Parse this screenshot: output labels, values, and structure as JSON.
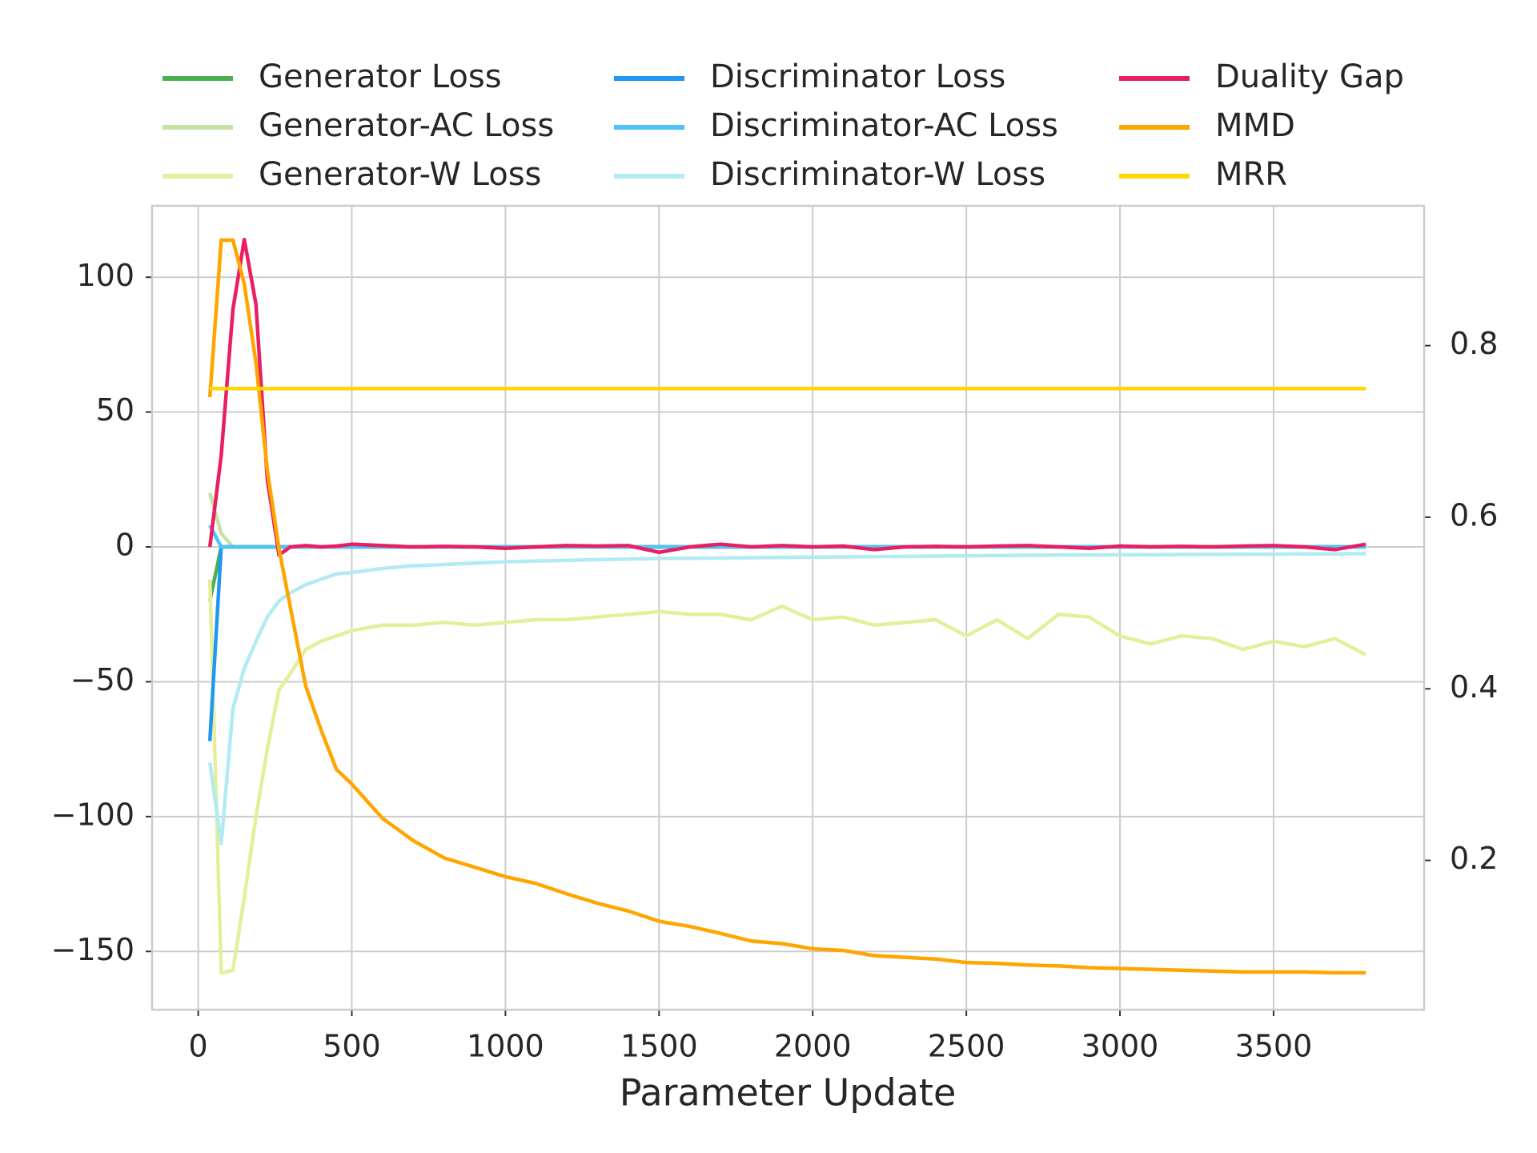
{
  "chart_data": {
    "type": "line",
    "x_label": "Parameter Update",
    "x": [
      38,
      75,
      113,
      150,
      188,
      225,
      263,
      300,
      350,
      400,
      450,
      500,
      600,
      700,
      800,
      900,
      1000,
      1100,
      1200,
      1300,
      1400,
      1500,
      1600,
      1700,
      1800,
      1900,
      2000,
      2100,
      2200,
      2300,
      2400,
      2500,
      2600,
      2700,
      2800,
      2900,
      3000,
      3100,
      3200,
      3300,
      3400,
      3500,
      3600,
      3700,
      3800
    ],
    "xlim": [
      -150,
      3990
    ],
    "xticks": [
      0,
      500,
      1000,
      1500,
      2000,
      2500,
      3000,
      3500
    ],
    "ylim": [
      -171.6,
      126.5
    ],
    "yticks": [
      {
        "value": -150,
        "label": "−150"
      },
      {
        "value": -100,
        "label": "−100"
      },
      {
        "value": -50,
        "label": "−50"
      },
      0,
      50,
      100
    ],
    "y2lim": [
      0.026,
      0.963
    ],
    "y2ticks": [
      0.2,
      0.4,
      0.6,
      0.8
    ],
    "grid": true,
    "legend": "top",
    "series": [
      {
        "name": "Generator Loss",
        "color": "#4caf50",
        "values": [
          -20,
          0,
          0,
          0,
          0,
          0,
          0,
          0,
          0,
          0,
          0,
          0,
          0,
          0,
          0,
          0,
          0,
          0,
          0,
          0,
          0,
          0,
          0,
          0,
          0,
          0,
          0,
          0,
          0,
          0,
          0,
          0,
          0,
          0,
          0,
          0,
          0,
          0,
          0,
          0,
          0,
          0,
          0,
          0,
          0
        ]
      },
      {
        "name": "Generator-AC Loss",
        "color": "#c5e1a5",
        "values": [
          20,
          5,
          0,
          0,
          0,
          0,
          0,
          0,
          0,
          0,
          0,
          0,
          0,
          0,
          0,
          0,
          0,
          0,
          0,
          0,
          0,
          0,
          0,
          0,
          0,
          0,
          0,
          0,
          0,
          0,
          0,
          0,
          0,
          0,
          0,
          0,
          0,
          0,
          0,
          0,
          0,
          0,
          0,
          0,
          0
        ]
      },
      {
        "name": "Generator-W Loss",
        "color": "#e6ee9c",
        "values": [
          -12,
          -158,
          -157,
          -130,
          -100,
          -75,
          -53,
          -47,
          -38,
          -35,
          -33,
          -31,
          -29,
          -29,
          -28,
          -29,
          -28,
          -27,
          -27,
          -26,
          -25,
          -24,
          -25,
          -25,
          -27,
          -22,
          -27,
          -26,
          -29,
          -28,
          -27,
          -33,
          -27,
          -34,
          -25,
          -26,
          -33,
          -36,
          -33,
          -34,
          -38,
          -35,
          -37,
          -34,
          -40
        ]
      },
      {
        "name": "Discriminator Loss",
        "color": "#2196f3",
        "values": [
          -72,
          0,
          0,
          0,
          0,
          0,
          0,
          0,
          0,
          0,
          0,
          0,
          0,
          0,
          0,
          0,
          0,
          0,
          0,
          0,
          0,
          0,
          0,
          0,
          0,
          0,
          0,
          0,
          0,
          0,
          0,
          0,
          0,
          0,
          0,
          0,
          0,
          0,
          0,
          0,
          0,
          0,
          0,
          0,
          0
        ]
      },
      {
        "name": "Discriminator-AC Loss",
        "color": "#4fc3f7",
        "values": [
          8,
          0,
          0,
          0,
          0,
          0,
          0,
          0,
          0,
          0,
          0,
          0,
          0,
          0,
          0,
          0,
          0,
          0,
          0,
          0,
          0,
          0,
          0,
          0,
          0,
          0,
          0,
          0,
          0,
          0,
          0,
          0,
          0,
          0,
          0,
          0,
          0,
          0,
          0,
          0,
          0,
          0,
          0,
          0,
          0
        ]
      },
      {
        "name": "Discriminator-W Loss",
        "color": "#b2ebf2",
        "values": [
          -80,
          -110,
          -60,
          -45,
          -35,
          -26,
          -20,
          -17,
          -14,
          -12,
          -10,
          -9.5,
          -8,
          -7,
          -6.5,
          -6,
          -5.5,
          -5.2,
          -5,
          -4.7,
          -4.5,
          -4.3,
          -4.2,
          -4.1,
          -4,
          -3.9,
          -3.8,
          -3.7,
          -3.6,
          -3.5,
          -3.4,
          -3.3,
          -3.2,
          -3.1,
          -3,
          -3,
          -2.9,
          -2.9,
          -2.8,
          -2.8,
          -2.7,
          -2.7,
          -2.6,
          -2.6,
          -2.5
        ]
      },
      {
        "name": "Duality Gap",
        "color": "#e91e63",
        "values": [
          0,
          34,
          88,
          114,
          90,
          25,
          -3,
          0,
          0.5,
          0,
          0.3,
          1,
          0.5,
          0,
          0.2,
          0,
          -0.5,
          0,
          0.5,
          0.3,
          0.5,
          -2,
          0,
          1,
          0,
          0.5,
          0,
          0.3,
          -1,
          0,
          0.2,
          0,
          0.3,
          0.5,
          0,
          -0.5,
          0.3,
          0,
          0.2,
          0,
          0.3,
          0.5,
          0,
          -1,
          1
        ]
      },
      {
        "name": "MMD",
        "color": "#ffa500",
        "axis": "y2",
        "values": [
          0.74,
          0.923,
          0.923,
          0.872,
          0.78,
          0.655,
          0.563,
          0.495,
          0.403,
          0.352,
          0.306,
          0.289,
          0.249,
          0.223,
          0.203,
          0.192,
          0.181,
          0.173,
          0.161,
          0.15,
          0.141,
          0.129,
          0.123,
          0.115,
          0.106,
          0.103,
          0.097,
          0.095,
          0.089,
          0.087,
          0.085,
          0.081,
          0.08,
          0.078,
          0.077,
          0.075,
          0.074,
          0.073,
          0.072,
          0.071,
          0.07,
          0.07,
          0.07,
          0.069,
          0.069
        ]
      },
      {
        "name": "MRR",
        "color": "#ffd600",
        "axis": "y2",
        "values": [
          0.75,
          0.75,
          0.75,
          0.75,
          0.75,
          0.75,
          0.75,
          0.75,
          0.75,
          0.75,
          0.75,
          0.75,
          0.75,
          0.75,
          0.75,
          0.75,
          0.75,
          0.75,
          0.75,
          0.75,
          0.75,
          0.75,
          0.75,
          0.75,
          0.75,
          0.75,
          0.75,
          0.75,
          0.75,
          0.75,
          0.75,
          0.75,
          0.75,
          0.75,
          0.75,
          0.75,
          0.75,
          0.75,
          0.75,
          0.75,
          0.75,
          0.75,
          0.75,
          0.75,
          0.75
        ]
      }
    ]
  }
}
